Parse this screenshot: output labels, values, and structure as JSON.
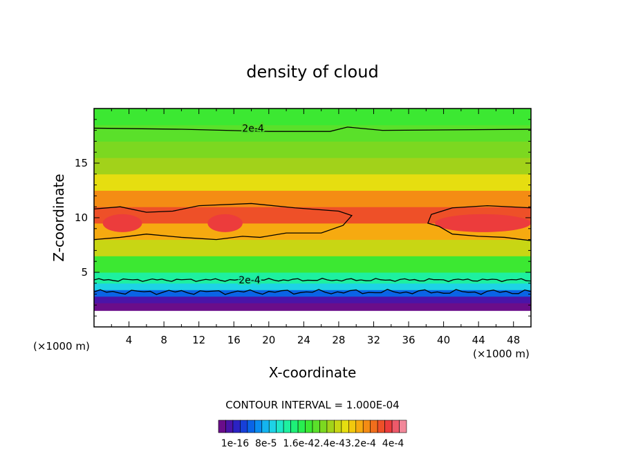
{
  "chart_data": {
    "type": "heatmap",
    "title": "density of cloud",
    "xlabel": "X-coordinate",
    "ylabel": "Z-coordinate",
    "x_unit_left": "(×1000 m)",
    "x_unit_right": "(×1000 m)",
    "xlim": [
      0,
      50
    ],
    "ylim": [
      0,
      20
    ],
    "x_ticks": [
      "4",
      "8",
      "12",
      "16",
      "20",
      "24",
      "28",
      "32",
      "36",
      "40",
      "44",
      "48"
    ],
    "y_ticks": [
      "5",
      "10",
      "15"
    ],
    "contour_interval_text": "CONTOUR INTERVAL = 1.000E-04",
    "contour_labels": [
      "2e-4",
      "2e-4"
    ],
    "colorbar_labels": [
      "1e-16",
      "8e-5",
      "1.6e-4",
      "2.4e-4",
      "3.2e-4",
      "4e-4"
    ],
    "colorbar_text": "1e-16  8e-5  1.6e-42.4e-43.2e-4  4e-4",
    "colorbar_colors": [
      "#6a0d8a",
      "#4a14a8",
      "#2b22c4",
      "#1740d8",
      "#0a64e6",
      "#0a8cf0",
      "#14b4f0",
      "#1ed2e6",
      "#1ee6c8",
      "#1ef0a0",
      "#1ef078",
      "#28ee50",
      "#3ce832",
      "#5ae02a",
      "#7cd820",
      "#a2d21a",
      "#c8d614",
      "#e6de10",
      "#f2c80e",
      "#f6aa10",
      "#f48c14",
      "#f06e1c",
      "#ee5028",
      "#ec3c3c",
      "#ee5a6a",
      "#f2889a"
    ],
    "value_range": [
      1e-16,
      0.0004
    ],
    "z_levels": [
      {
        "z": 1.5,
        "value": 2e-06
      },
      {
        "z": 2.2,
        "value": 3e-05
      },
      {
        "z": 2.8,
        "value": 7e-05
      },
      {
        "z": 3.4,
        "value": 0.00011
      },
      {
        "z": 4.0,
        "value": 0.00015
      },
      {
        "z": 5.0,
        "value": 0.0002
      },
      {
        "z": 6.5,
        "value": 0.00025
      },
      {
        "z": 8.0,
        "value": 0.0003
      },
      {
        "z": 9.5,
        "value": 0.00034
      },
      {
        "z": 11.0,
        "value": 0.00031
      },
      {
        "z": 12.5,
        "value": 0.00027
      },
      {
        "z": 14.0,
        "value": 0.00024
      },
      {
        "z": 15.5,
        "value": 0.00022
      },
      {
        "z": 17.0,
        "value": 0.000205
      },
      {
        "z": 18.5,
        "value": 0.00019
      },
      {
        "z": 20.0,
        "value": 0.00017
      }
    ]
  }
}
